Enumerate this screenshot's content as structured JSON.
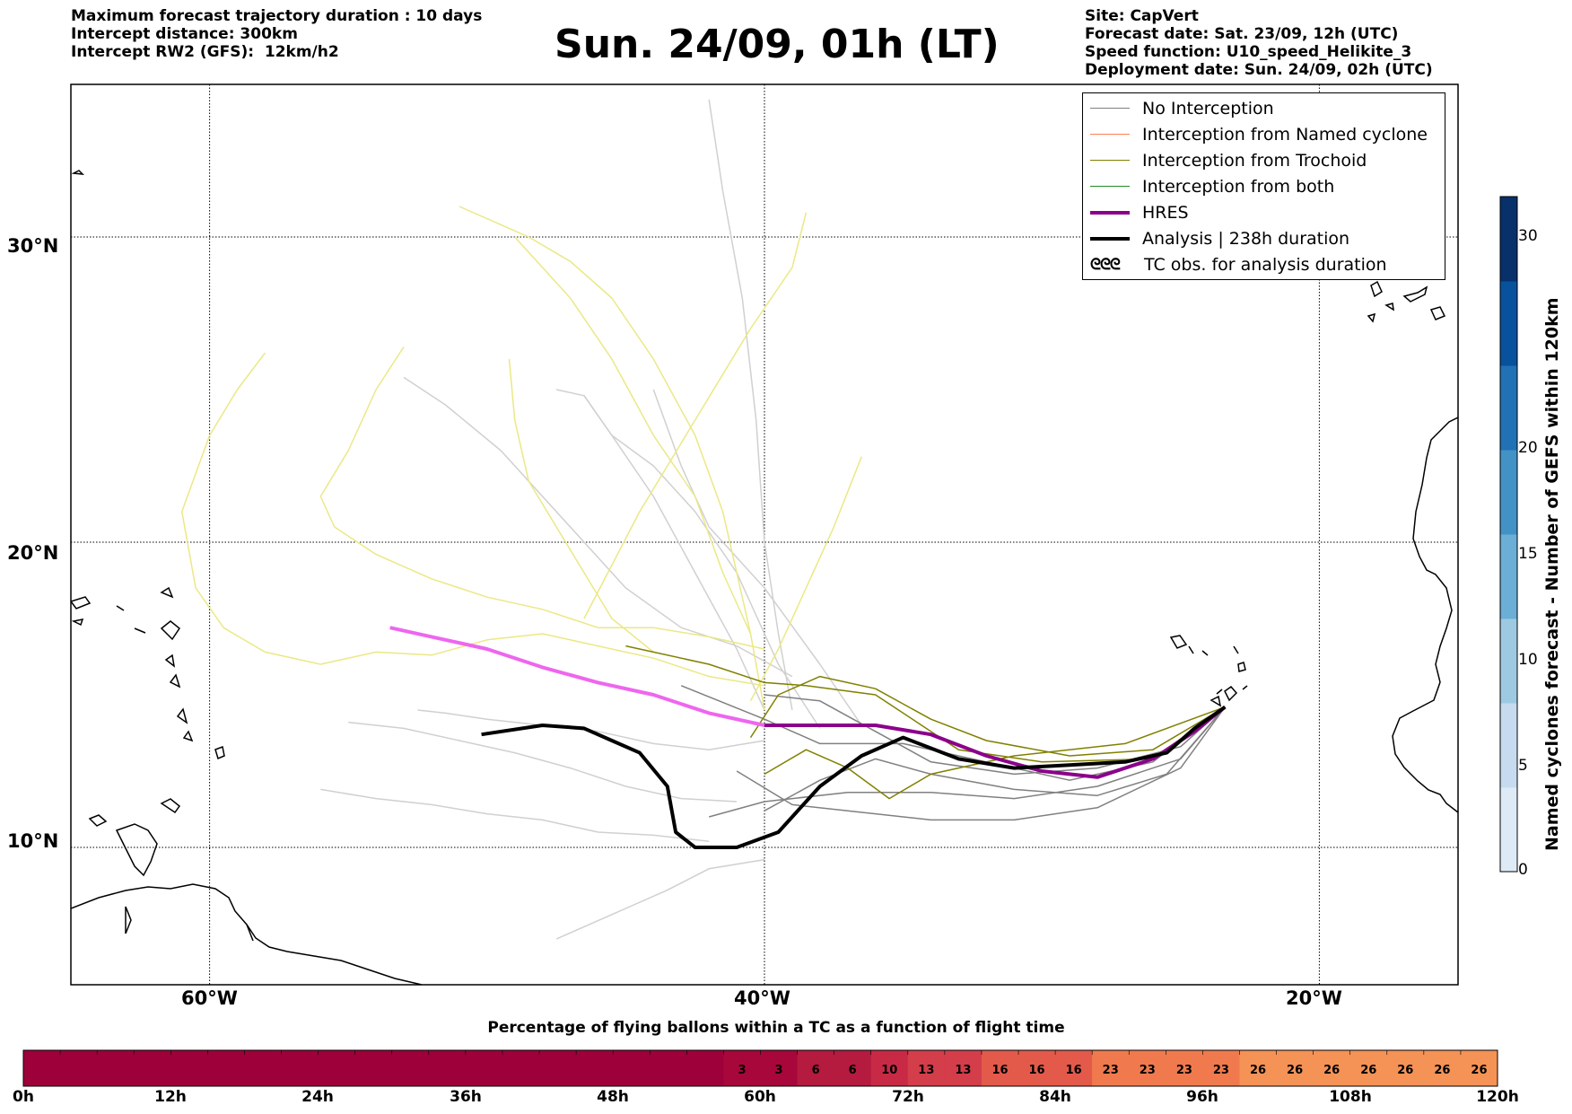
{
  "header": {
    "left": [
      "Maximum forecast trajectory duration : 10 days",
      "Intercept distance: 300km",
      "Intercept RW2 (GFS):  12km/h2"
    ],
    "title": "Sun. 24/09, 01h (LT)",
    "right": [
      "Site: CapVert",
      "Forecast date: Sat. 23/09, 12h (UTC)",
      "Speed function: U10_speed_Helikite_3",
      "Deployment date: Sun. 24/09, 02h (UTC)"
    ]
  },
  "legend": {
    "items": [
      {
        "label": "No Interception",
        "color": "#808080",
        "width": 1.5
      },
      {
        "label": "Interception from Named cyclone",
        "color": "#ff7f50",
        "width": 1.5
      },
      {
        "label": "Interception from Trochoid",
        "color": "#808000",
        "width": 1.5
      },
      {
        "label": "Interception from both",
        "color": "#228b22",
        "width": 1.5
      },
      {
        "label": "HRES",
        "color": "#8b008b",
        "width": 4
      },
      {
        "label": "Analysis | 238h duration",
        "color": "#000000",
        "width": 4
      }
    ],
    "tc_symbol": "ᘓᘓᘓ",
    "tc_label": "TC obs. for analysis duration"
  },
  "colorbar": {
    "title": "Named cyclones forecast - Number of GEFS within 120km",
    "ticks": [
      "0",
      "5",
      "10",
      "15",
      "20",
      "30"
    ],
    "colors": [
      "#deebf7",
      "#c6dbef",
      "#9ecae1",
      "#6baed6",
      "#4292c6",
      "#2171b5",
      "#08519c",
      "#08306b"
    ]
  },
  "timebar": {
    "title": "Percentage of flying ballons within a TC as a function of flight time",
    "tick_labels": [
      "0h",
      "12h",
      "24h",
      "36h",
      "48h",
      "60h",
      "72h",
      "84h",
      "96h",
      "108h",
      "120h"
    ],
    "cells": [
      {
        "v": 0,
        "label": ""
      },
      {
        "v": 0,
        "label": ""
      },
      {
        "v": 0,
        "label": ""
      },
      {
        "v": 0,
        "label": ""
      },
      {
        "v": 0,
        "label": ""
      },
      {
        "v": 0,
        "label": ""
      },
      {
        "v": 0,
        "label": ""
      },
      {
        "v": 0,
        "label": ""
      },
      {
        "v": 0,
        "label": ""
      },
      {
        "v": 0,
        "label": ""
      },
      {
        "v": 0,
        "label": ""
      },
      {
        "v": 0,
        "label": ""
      },
      {
        "v": 0,
        "label": ""
      },
      {
        "v": 0,
        "label": ""
      },
      {
        "v": 0,
        "label": ""
      },
      {
        "v": 0,
        "label": ""
      },
      {
        "v": 0,
        "label": ""
      },
      {
        "v": 0,
        "label": ""
      },
      {
        "v": 0,
        "label": ""
      },
      {
        "v": 3,
        "label": "3"
      },
      {
        "v": 3,
        "label": "3"
      },
      {
        "v": 6,
        "label": "6"
      },
      {
        "v": 6,
        "label": "6"
      },
      {
        "v": 10,
        "label": "10"
      },
      {
        "v": 13,
        "label": "13"
      },
      {
        "v": 13,
        "label": "13"
      },
      {
        "v": 16,
        "label": "16"
      },
      {
        "v": 16,
        "label": "16"
      },
      {
        "v": 16,
        "label": "16"
      },
      {
        "v": 23,
        "label": "23"
      },
      {
        "v": 23,
        "label": "23"
      },
      {
        "v": 23,
        "label": "23"
      },
      {
        "v": 23,
        "label": "23"
      },
      {
        "v": 26,
        "label": "26"
      },
      {
        "v": 26,
        "label": "26"
      },
      {
        "v": 26,
        "label": "26"
      },
      {
        "v": 26,
        "label": "26"
      },
      {
        "v": 26,
        "label": "26"
      },
      {
        "v": 26,
        "label": "26"
      },
      {
        "v": 26,
        "label": "26"
      }
    ]
  },
  "chart_data": {
    "type": "line",
    "xlim": [
      -65,
      -15
    ],
    "ylim": [
      5.5,
      35
    ],
    "x_ticks": [
      {
        "value": -60,
        "label": "60°W"
      },
      {
        "value": -40,
        "label": "40°W"
      },
      {
        "value": -20,
        "label": "20°W"
      }
    ],
    "y_ticks": [
      {
        "value": 10,
        "label": "10°N"
      },
      {
        "value": 20,
        "label": "20°N"
      },
      {
        "value": 30,
        "label": "30°N"
      }
    ],
    "grid": true,
    "legend_position": "top-right",
    "series": [
      {
        "name": "HRES",
        "color": "#8b008b",
        "x": [
          -23.4,
          -24.5,
          -26,
          -28,
          -30,
          -32,
          -34,
          -36,
          -38,
          -40,
          -42,
          -44,
          -46,
          -48,
          -50,
          -52,
          -53.5
        ],
        "y": [
          14.6,
          13.8,
          12.9,
          12.3,
          12.5,
          13.0,
          13.7,
          14.0,
          14.0,
          14.0,
          14.4,
          15.0,
          15.4,
          15.9,
          16.5,
          16.9,
          17.2
        ]
      },
      {
        "name": "Analysis | 238h duration",
        "color": "#000000",
        "x": [
          -23.4,
          -24.5,
          -25.5,
          -27,
          -29,
          -31,
          -33,
          -35,
          -36.5,
          -38,
          -39.5,
          -41,
          -42.5,
          -43.2,
          -43.5,
          -44.5,
          -45.5,
          -46.5,
          -48,
          -50.2
        ],
        "y": [
          14.6,
          13.9,
          13.1,
          12.8,
          12.7,
          12.6,
          12.9,
          13.6,
          13.0,
          12.0,
          10.5,
          10.0,
          10.0,
          10.5,
          12.0,
          13.1,
          13.5,
          13.9,
          14.0,
          13.7
        ]
      },
      {
        "name": "",
        "color": "#808080",
        "x": [
          -23.4,
          -25,
          -28,
          -31,
          -34,
          -36,
          -38,
          -40
        ],
        "y": [
          14.6,
          13.3,
          12.6,
          12.4,
          12.8,
          13.8,
          14.8,
          15.0
        ]
      },
      {
        "name": "",
        "color": "#808080",
        "x": [
          -23.4,
          -25,
          -28,
          -31,
          -34,
          -37,
          -40,
          -42
        ],
        "y": [
          14.6,
          12.9,
          12.0,
          11.6,
          11.8,
          11.8,
          11.5,
          11.0
        ]
      },
      {
        "name": "",
        "color": "#808080",
        "x": [
          -23.4,
          -25,
          -28,
          -31,
          -34,
          -37,
          -39,
          -41
        ],
        "y": [
          14.6,
          12.6,
          11.3,
          10.9,
          10.9,
          11.2,
          11.4,
          12.5
        ]
      },
      {
        "name": "",
        "color": "#808080",
        "x": [
          -23.4,
          -26,
          -29,
          -32,
          -35,
          -38,
          -40,
          -43
        ],
        "y": [
          14.6,
          12.8,
          12.2,
          12.8,
          13.4,
          13.4,
          14.2,
          15.3
        ]
      },
      {
        "name": "",
        "color": "#808080",
        "x": [
          -23.4,
          -25.5,
          -28,
          -31,
          -34,
          -36,
          -38,
          -40
        ],
        "y": [
          14.6,
          12.4,
          11.7,
          11.9,
          12.4,
          12.9,
          12.2,
          11.2
        ]
      },
      {
        "name": "",
        "color": "#808000",
        "x": [
          -23.4,
          -26,
          -29,
          -32,
          -34,
          -36,
          -38,
          -39.5,
          -40.5
        ],
        "y": [
          14.6,
          13.2,
          13.0,
          13.5,
          14.2,
          15.2,
          15.6,
          15.0,
          13.6
        ]
      },
      {
        "name": "",
        "color": "#808000",
        "x": [
          -23.4,
          -26,
          -30,
          -33,
          -36,
          -38.5,
          -40,
          -42,
          -45
        ],
        "y": [
          14.6,
          12.9,
          12.8,
          13.2,
          15.0,
          15.3,
          15.4,
          16.0,
          16.6
        ]
      },
      {
        "name": "",
        "color": "#808000",
        "x": [
          -23.4,
          -27,
          -31,
          -34,
          -35.5,
          -37,
          -38.5,
          -40
        ],
        "y": [
          14.6,
          13.4,
          13.0,
          12.4,
          11.6,
          12.6,
          13.2,
          12.4
        ]
      },
      {
        "name": "",
        "color": "#d0d0d0",
        "x": [
          -40,
          -41,
          -42.5,
          -44,
          -45.5,
          -46.5,
          -47.5
        ],
        "y": [
          14.5,
          16.5,
          19.0,
          21.5,
          23.5,
          24.8,
          25.0
        ]
      },
      {
        "name": "",
        "color": "#d0d0d0",
        "x": [
          -40,
          -42,
          -44,
          -46,
          -48,
          -50,
          -51.5,
          -52.5
        ],
        "y": [
          13.5,
          13.2,
          13.4,
          13.8,
          14.0,
          14.2,
          14.4,
          14.5
        ]
      },
      {
        "name": "",
        "color": "#d0d0d0",
        "x": [
          -41,
          -43,
          -45,
          -47,
          -49,
          -51,
          -53,
          -55
        ],
        "y": [
          11.5,
          11.6,
          12.0,
          12.6,
          13.1,
          13.5,
          13.9,
          14.1
        ]
      },
      {
        "name": "",
        "color": "#d0d0d0",
        "x": [
          -42,
          -44,
          -46,
          -48,
          -50,
          -52,
          -54,
          -56
        ],
        "y": [
          10.2,
          10.4,
          10.5,
          10.9,
          11.1,
          11.4,
          11.6,
          11.9
        ]
      },
      {
        "name": "",
        "color": "#d0d0d0",
        "x": [
          -40,
          -42,
          -43.5,
          -45,
          -46.5,
          -47.5
        ],
        "y": [
          9.6,
          9.3,
          8.6,
          8.0,
          7.4,
          7.0
        ]
      },
      {
        "name": "",
        "color": "#d0d0d0",
        "x": [
          -39,
          -39.5,
          -40,
          -40.3,
          -40.8,
          -41.5,
          -42
        ],
        "y": [
          14.5,
          17.0,
          20.0,
          24.0,
          28.0,
          31.5,
          34.5
        ]
      },
      {
        "name": "",
        "color": "#d0d0d0",
        "x": [
          -39,
          -41,
          -43,
          -45,
          -46.5,
          -48,
          -49.5,
          -51.5,
          -53
        ],
        "y": [
          15.6,
          16.6,
          17.2,
          18.5,
          20.0,
          21.5,
          23.0,
          24.5,
          25.4
        ]
      },
      {
        "name": "",
        "color": "#d0d0d0",
        "x": [
          -38,
          -39.5,
          -41,
          -42.5,
          -44,
          -45.5,
          -46.5
        ],
        "y": [
          13.9,
          16.0,
          19.0,
          21.0,
          22.5,
          23.5,
          24.8
        ]
      },
      {
        "name": "",
        "color": "#d0d0d0",
        "x": [
          -36.5,
          -38,
          -40,
          -42,
          -43,
          -44
        ],
        "y": [
          14.0,
          16.0,
          18.5,
          20.5,
          22.5,
          25.0
        ]
      },
      {
        "name": "",
        "color": "#ebe884",
        "x": [
          -40,
          -40.5,
          -41.5,
          -42.5,
          -44,
          -45.5,
          -47,
          -49
        ],
        "y": [
          14.5,
          17.0,
          19.0,
          21.5,
          23.5,
          26.0,
          28.0,
          30.0
        ]
      },
      {
        "name": "",
        "color": "#ebe884",
        "x": [
          -40,
          -42,
          -44,
          -46,
          -48,
          -50,
          -52,
          -54,
          -56,
          -58,
          -59.5,
          -60.5,
          -61,
          -60,
          -59,
          -58
        ],
        "y": [
          15.3,
          15.6,
          16.2,
          16.6,
          17.0,
          16.8,
          16.3,
          16.4,
          16.0,
          16.4,
          17.2,
          18.5,
          21.0,
          23.5,
          25.0,
          26.2
        ]
      },
      {
        "name": "",
        "color": "#ebe884",
        "x": [
          -40,
          -42,
          -44,
          -46,
          -48,
          -50,
          -52,
          -54,
          -55.5,
          -56,
          -55,
          -54,
          -53
        ],
        "y": [
          16.5,
          16.9,
          17.2,
          17.2,
          17.8,
          18.2,
          18.8,
          19.6,
          20.5,
          21.5,
          23.0,
          25.0,
          26.4
        ]
      },
      {
        "name": "",
        "color": "#ebe884",
        "x": [
          -44,
          -45.5,
          -46.5,
          -47.5,
          -48.5,
          -49,
          -49.2
        ],
        "y": [
          16.4,
          17.5,
          19.0,
          20.5,
          22.0,
          24.0,
          26.0
        ]
      },
      {
        "name": "",
        "color": "#ebe884",
        "x": [
          -40.5,
          -39.5,
          -38.5,
          -37.5,
          -36.5
        ],
        "y": [
          14.8,
          16.5,
          18.5,
          20.5,
          22.8
        ]
      },
      {
        "name": "",
        "color": "#ebe884",
        "x": [
          -40.5,
          -41,
          -41.5,
          -42.5,
          -44,
          -45.5,
          -47,
          -48.5,
          -51
        ],
        "y": [
          17.0,
          19.0,
          21.0,
          23.5,
          26.0,
          28.0,
          29.2,
          30.0,
          31.0
        ]
      },
      {
        "name": "",
        "color": "#ebe884",
        "x": [
          -46.5,
          -44.5,
          -42.5,
          -40.5,
          -39,
          -38.5
        ],
        "y": [
          17.5,
          21.0,
          24.0,
          27.0,
          29.0,
          30.8
        ]
      }
    ]
  }
}
